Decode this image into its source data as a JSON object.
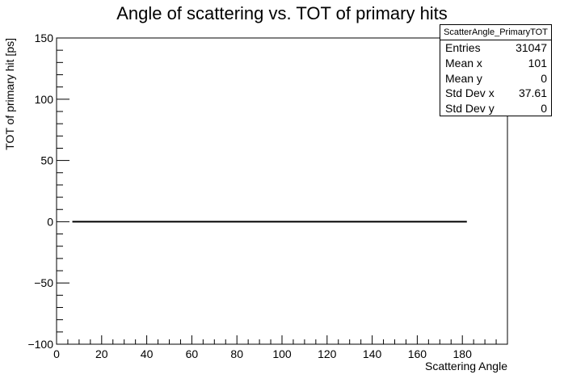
{
  "chart_data": {
    "type": "scatter",
    "title": "Angle of scattering vs. TOT of primary hits",
    "xlabel": "Scattering Angle",
    "ylabel": "TOT of primary hit [ps]",
    "xlim": [
      0,
      200
    ],
    "ylim": [
      -100,
      150
    ],
    "x_ticks": [
      0,
      20,
      40,
      60,
      80,
      100,
      120,
      140,
      160,
      180
    ],
    "x_tick_labels": [
      "0",
      "20",
      "40",
      "60",
      "80",
      "100",
      "120",
      "140",
      "160",
      "180"
    ],
    "y_ticks": [
      -100,
      -50,
      0,
      50,
      100,
      150
    ],
    "y_tick_labels": [
      "−100",
      "−50",
      "0",
      "50",
      "100",
      "150"
    ],
    "series": [
      {
        "x": [
          7,
          182
        ],
        "y": [
          0,
          0
        ],
        "color": "#000000"
      }
    ],
    "legend": "none",
    "grid": false
  },
  "stats_box": {
    "title": "ScatterAngle_PrimaryTOT",
    "rows": [
      {
        "label": "Entries",
        "value": "31047"
      },
      {
        "label": "Mean x",
        "value": "101"
      },
      {
        "label": "Mean y",
        "value": "0"
      },
      {
        "label": "Std Dev x",
        "value": "37.61"
      },
      {
        "label": "Std Dev y",
        "value": "0"
      }
    ]
  }
}
